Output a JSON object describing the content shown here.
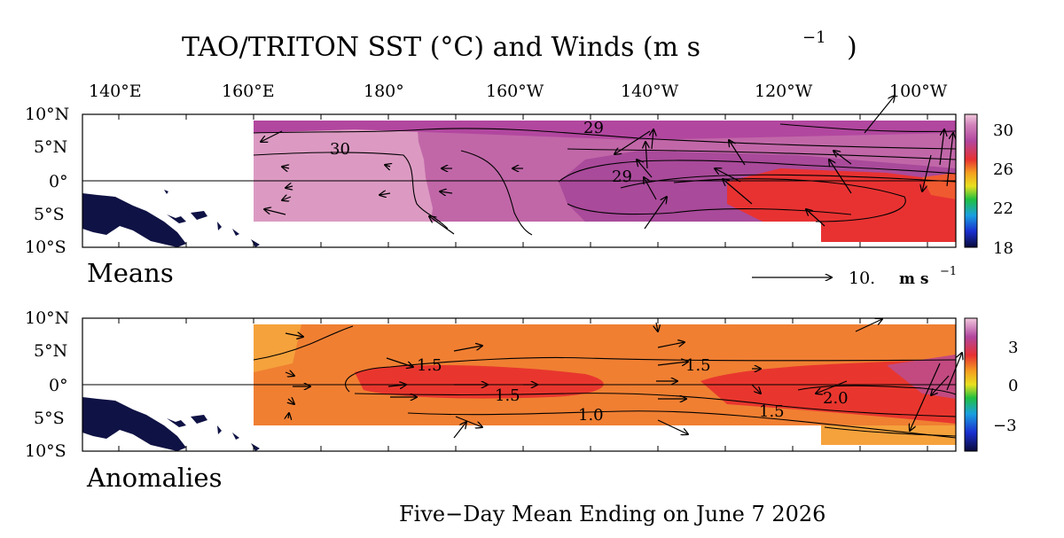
{
  "title": "TAO/TRITON SST (°C) and Winds (m s",
  "title_exp": "−1",
  "title_close": ")",
  "footer": "Five−Day Mean Ending on June 7 2026",
  "panels": {
    "means": {
      "label": "Means"
    },
    "anomalies": {
      "label": "Anomalies"
    }
  },
  "wind_scale": {
    "value": "10.",
    "unit": "m s",
    "exp": "−1"
  },
  "lon_ticks": [
    "140°E",
    "160°E",
    "180°",
    "160°W",
    "140°W",
    "120°W",
    "100°W"
  ],
  "lat_ticks": [
    "10°N",
    "5°N",
    "0°",
    "5°S",
    "10°S"
  ],
  "chart_data": [
    {
      "type": "heatmap",
      "name": "Means",
      "quantity": "SST (°C)",
      "x_axis": {
        "ticks": [
          "140°E",
          "160°E",
          "180°",
          "160°W",
          "140°W",
          "120°W",
          "100°W"
        ]
      },
      "y_axis": {
        "ticks": [
          "10°N",
          "5°N",
          "0°",
          "5°S",
          "10°S"
        ]
      },
      "colorbar": {
        "ticks": [
          "30",
          "26",
          "22",
          "18"
        ],
        "range": [
          18,
          31
        ]
      },
      "contour_labels": [
        "29",
        "30",
        "29"
      ]
    },
    {
      "type": "heatmap",
      "name": "Anomalies",
      "quantity": "SST anomaly (°C)",
      "x_axis": {
        "ticks": [
          "140°E",
          "160°E",
          "180°",
          "160°W",
          "140°W",
          "120°W",
          "100°W"
        ]
      },
      "y_axis": {
        "ticks": [
          "10°N",
          "5°N",
          "0°",
          "5°S",
          "10°S"
        ]
      },
      "colorbar": {
        "ticks": [
          "3",
          "0",
          "−3"
        ],
        "range": [
          -5,
          5
        ]
      },
      "contour_labels": [
        "1.5",
        "1.5",
        "1.5",
        "1.0",
        "1.5",
        "2.0"
      ]
    }
  ],
  "colors": {
    "mean_light": "#dc9ac2",
    "mean_mid": "#c167a8",
    "mean_deep": "#a94a9a",
    "mean_red": "#e83232",
    "anom_orange": "#f5a23c",
    "anom_orange2": "#f07f32",
    "anom_red": "#e8362e",
    "land": "#0f1244"
  }
}
